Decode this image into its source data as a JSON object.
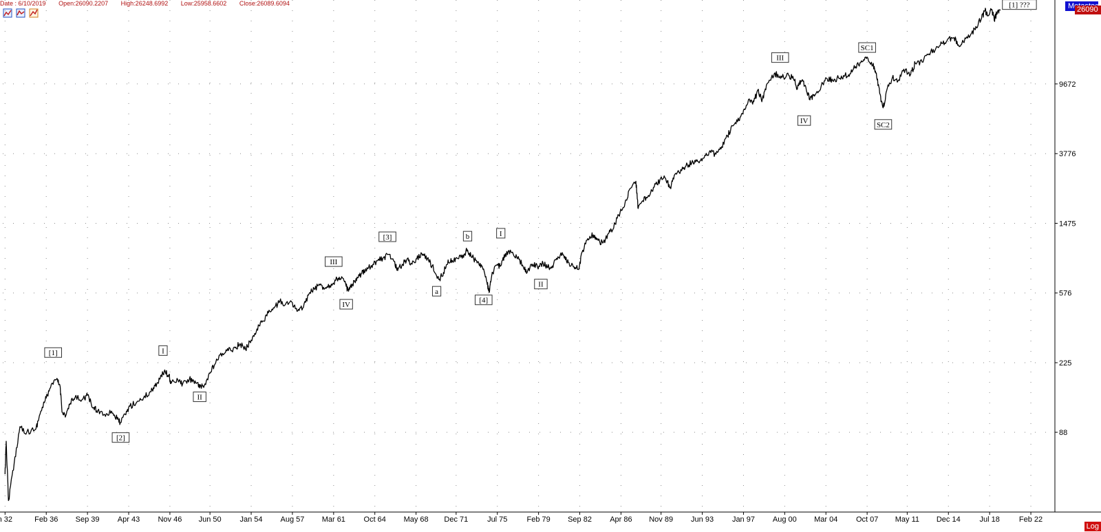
{
  "header": {
    "date": "Date : 6/10/2019",
    "open": "Open:26090.2207",
    "high": "High:26248.6992",
    "low": "Low:25958.6602",
    "close": "Close:26089.6094"
  },
  "toolbar": {
    "icons": [
      "chart-tool-icon",
      "chart-tool-icon",
      "chart-tool-icon"
    ]
  },
  "badges": {
    "name": "Metastock",
    "price": "26090",
    "scale_button": "Log"
  },
  "colors": {
    "line": "#000000",
    "grid": "#8a8a8a",
    "header_text": "#b01010",
    "name_badge": "#1010d0",
    "price_badge": "#c01010"
  },
  "chart_data": {
    "type": "line",
    "y_scale": "log",
    "grid": true,
    "ylim": [
      30,
      30000
    ],
    "xlim": [
      1932.3,
      2024.2
    ],
    "y_ticks": [
      88,
      225,
      576,
      1475,
      3776,
      9672
    ],
    "x_ticks": [
      {
        "x": 1932.5,
        "label": "n 32"
      },
      {
        "x": 1936.1,
        "label": "Feb 36"
      },
      {
        "x": 1939.7,
        "label": "Sep 39"
      },
      {
        "x": 1943.3,
        "label": "Apr 43"
      },
      {
        "x": 1946.9,
        "label": "Nov 46"
      },
      {
        "x": 1950.4,
        "label": "Jun 50"
      },
      {
        "x": 1954.0,
        "label": "Jan 54"
      },
      {
        "x": 1957.6,
        "label": "Aug 57"
      },
      {
        "x": 1961.2,
        "label": "Mar 61"
      },
      {
        "x": 1964.8,
        "label": "Oct 64"
      },
      {
        "x": 1968.4,
        "label": "May 68"
      },
      {
        "x": 1971.9,
        "label": "Dec 71"
      },
      {
        "x": 1975.5,
        "label": "Jul 75"
      },
      {
        "x": 1979.1,
        "label": "Feb 79"
      },
      {
        "x": 1982.7,
        "label": "Sep 82"
      },
      {
        "x": 1986.3,
        "label": "Apr 86"
      },
      {
        "x": 1989.8,
        "label": "Nov 89"
      },
      {
        "x": 1993.4,
        "label": "Jun 93"
      },
      {
        "x": 1997.0,
        "label": "Jan 97"
      },
      {
        "x": 2000.6,
        "label": "Aug 00"
      },
      {
        "x": 2004.2,
        "label": "Mar 04"
      },
      {
        "x": 2007.8,
        "label": "Oct 07"
      },
      {
        "x": 2011.3,
        "label": "May 11"
      },
      {
        "x": 2014.9,
        "label": "Dec 14"
      },
      {
        "x": 2018.5,
        "label": "Jul 18"
      },
      {
        "x": 2022.1,
        "label": "Feb 22"
      }
    ],
    "series": [
      {
        "points": [
          [
            1932.5,
            50
          ],
          [
            1932.6,
            78
          ],
          [
            1932.8,
            35
          ],
          [
            1933.3,
            58
          ],
          [
            1933.8,
            95
          ],
          [
            1934.4,
            88
          ],
          [
            1935.2,
            92
          ],
          [
            1935.5,
            110
          ],
          [
            1936.0,
            135
          ],
          [
            1936.4,
            158
          ],
          [
            1937.0,
            180
          ],
          [
            1937.3,
            165
          ],
          [
            1937.5,
            115
          ],
          [
            1937.8,
            110
          ],
          [
            1938.2,
            130
          ],
          [
            1938.6,
            140
          ],
          [
            1939.3,
            138
          ],
          [
            1939.7,
            145
          ],
          [
            1940.2,
            122
          ],
          [
            1940.6,
            118
          ],
          [
            1941.2,
            112
          ],
          [
            1941.8,
            117
          ],
          [
            1942.3,
            105
          ],
          [
            1942.6,
            100
          ],
          [
            1943.0,
            112
          ],
          [
            1943.4,
            125
          ],
          [
            1944.0,
            132
          ],
          [
            1944.6,
            140
          ],
          [
            1945.2,
            152
          ],
          [
            1945.6,
            165
          ],
          [
            1946.0,
            180
          ],
          [
            1946.4,
            200
          ],
          [
            1946.8,
            190
          ],
          [
            1947.0,
            170
          ],
          [
            1947.6,
            178
          ],
          [
            1948.0,
            168
          ],
          [
            1948.6,
            180
          ],
          [
            1949.1,
            176
          ],
          [
            1949.5,
            160
          ],
          [
            1949.9,
            165
          ],
          [
            1950.4,
            195
          ],
          [
            1950.9,
            225
          ],
          [
            1951.5,
            255
          ],
          [
            1952.0,
            265
          ],
          [
            1952.6,
            275
          ],
          [
            1953.0,
            290
          ],
          [
            1953.5,
            270
          ],
          [
            1954.0,
            305
          ],
          [
            1954.5,
            355
          ],
          [
            1955.0,
            395
          ],
          [
            1955.5,
            440
          ],
          [
            1956.0,
            470
          ],
          [
            1956.5,
            515
          ],
          [
            1957.0,
            495
          ],
          [
            1957.6,
            505
          ],
          [
            1958.0,
            450
          ],
          [
            1958.5,
            470
          ],
          [
            1959.0,
            560
          ],
          [
            1959.5,
            610
          ],
          [
            1960.0,
            640
          ],
          [
            1960.5,
            620
          ],
          [
            1961.0,
            650
          ],
          [
            1961.5,
            695
          ],
          [
            1961.9,
            718
          ],
          [
            1962.3,
            630
          ],
          [
            1962.5,
            590
          ],
          [
            1962.8,
            640
          ],
          [
            1963.2,
            680
          ],
          [
            1963.6,
            745
          ],
          [
            1964.0,
            800
          ],
          [
            1964.5,
            835
          ],
          [
            1965.0,
            890
          ],
          [
            1965.5,
            920
          ],
          [
            1966.0,
            970
          ],
          [
            1966.5,
            880
          ],
          [
            1966.8,
            780
          ],
          [
            1967.2,
            850
          ],
          [
            1967.6,
            905
          ],
          [
            1968.0,
            860
          ],
          [
            1968.4,
            910
          ],
          [
            1968.9,
            980
          ],
          [
            1969.4,
            920
          ],
          [
            1969.8,
            830
          ],
          [
            1970.4,
            690
          ],
          [
            1970.8,
            760
          ],
          [
            1971.2,
            900
          ],
          [
            1971.6,
            880
          ],
          [
            1972.0,
            920
          ],
          [
            1972.5,
            960
          ],
          [
            1972.9,
            1030
          ],
          [
            1973.3,
            930
          ],
          [
            1973.8,
            880
          ],
          [
            1974.2,
            820
          ],
          [
            1974.6,
            660
          ],
          [
            1974.8,
            580
          ],
          [
            1975.0,
            720
          ],
          [
            1975.4,
            840
          ],
          [
            1975.8,
            830
          ],
          [
            1976.2,
            980
          ],
          [
            1976.7,
            1000
          ],
          [
            1977.2,
            930
          ],
          [
            1977.7,
            840
          ],
          [
            1978.1,
            760
          ],
          [
            1978.6,
            850
          ],
          [
            1979.0,
            820
          ],
          [
            1979.5,
            860
          ],
          [
            1979.9,
            810
          ],
          [
            1980.3,
            830
          ],
          [
            1980.8,
            940
          ],
          [
            1981.3,
            960
          ],
          [
            1981.7,
            870
          ],
          [
            1982.2,
            820
          ],
          [
            1982.6,
            790
          ],
          [
            1982.9,
            1000
          ],
          [
            1983.4,
            1200
          ],
          [
            1983.9,
            1260
          ],
          [
            1984.3,
            1170
          ],
          [
            1984.7,
            1130
          ],
          [
            1985.2,
            1280
          ],
          [
            1985.6,
            1360
          ],
          [
            1986.1,
            1650
          ],
          [
            1986.6,
            1850
          ],
          [
            1987.0,
            2300
          ],
          [
            1987.6,
            2600
          ],
          [
            1987.8,
            1800
          ],
          [
            1988.2,
            2000
          ],
          [
            1988.7,
            2150
          ],
          [
            1989.2,
            2400
          ],
          [
            1989.7,
            2650
          ],
          [
            1990.2,
            2700
          ],
          [
            1990.6,
            2400
          ],
          [
            1991.0,
            2850
          ],
          [
            1991.6,
            3000
          ],
          [
            1992.1,
            3250
          ],
          [
            1992.6,
            3350
          ],
          [
            1993.0,
            3400
          ],
          [
            1993.5,
            3550
          ],
          [
            1994.0,
            3850
          ],
          [
            1994.6,
            3750
          ],
          [
            1995.1,
            4150
          ],
          [
            1995.6,
            4800
          ],
          [
            1996.1,
            5500
          ],
          [
            1996.6,
            5900
          ],
          [
            1997.0,
            6800
          ],
          [
            1997.5,
            7900
          ],
          [
            1997.9,
            7600
          ],
          [
            1998.3,
            9000
          ],
          [
            1998.6,
            7600
          ],
          [
            1999.0,
            9500
          ],
          [
            1999.5,
            10900
          ],
          [
            2000.0,
            11000
          ],
          [
            2000.5,
            10600
          ],
          [
            2001.0,
            10800
          ],
          [
            2001.5,
            10300
          ],
          [
            2001.7,
            9000
          ],
          [
            2002.0,
            10100
          ],
          [
            2002.4,
            9500
          ],
          [
            2002.8,
            7800
          ],
          [
            2003.2,
            8200
          ],
          [
            2003.8,
            9500
          ],
          [
            2004.3,
            10400
          ],
          [
            2004.8,
            10100
          ],
          [
            2005.3,
            10500
          ],
          [
            2005.8,
            10700
          ],
          [
            2006.3,
            11100
          ],
          [
            2006.8,
            12200
          ],
          [
            2007.3,
            13200
          ],
          [
            2007.8,
            13900
          ],
          [
            2008.3,
            12500
          ],
          [
            2008.6,
            11200
          ],
          [
            2008.9,
            8500
          ],
          [
            2009.2,
            7000
          ],
          [
            2009.5,
            8800
          ],
          [
            2010.0,
            10500
          ],
          [
            2010.5,
            10100
          ],
          [
            2011.0,
            11800
          ],
          [
            2011.6,
            11000
          ],
          [
            2012.0,
            12800
          ],
          [
            2012.6,
            13000
          ],
          [
            2013.2,
            14500
          ],
          [
            2013.8,
            15600
          ],
          [
            2014.4,
            16700
          ],
          [
            2014.9,
            17800
          ],
          [
            2015.4,
            18000
          ],
          [
            2015.8,
            16200
          ],
          [
            2016.2,
            17000
          ],
          [
            2016.8,
            18500
          ],
          [
            2017.3,
            21000
          ],
          [
            2017.8,
            23500
          ],
          [
            2018.1,
            26000
          ],
          [
            2018.3,
            24200
          ],
          [
            2018.7,
            26400
          ],
          [
            2018.9,
            22800
          ],
          [
            2019.2,
            25800
          ],
          [
            2019.45,
            26100
          ]
        ]
      }
    ],
    "annotations": [
      {
        "text": "[1]",
        "x": 1936.7,
        "y": 258
      },
      {
        "text": "[2]",
        "x": 1942.6,
        "y": 82
      },
      {
        "text": "I",
        "x": 1946.3,
        "y": 265
      },
      {
        "text": "II",
        "x": 1949.5,
        "y": 142
      },
      {
        "text": "III",
        "x": 1961.2,
        "y": 880
      },
      {
        "text": "IV",
        "x": 1962.3,
        "y": 495
      },
      {
        "text": "[3]",
        "x": 1965.9,
        "y": 1230
      },
      {
        "text": "a",
        "x": 1970.2,
        "y": 590
      },
      {
        "text": "b",
        "x": 1972.9,
        "y": 1240
      },
      {
        "text": "[4]",
        "x": 1974.3,
        "y": 525
      },
      {
        "text": "I",
        "x": 1975.8,
        "y": 1290
      },
      {
        "text": "II",
        "x": 1979.3,
        "y": 650
      },
      {
        "text": "III",
        "x": 2000.2,
        "y": 13800
      },
      {
        "text": "IV",
        "x": 2002.3,
        "y": 5900
      },
      {
        "text": "SC1",
        "x": 2007.8,
        "y": 15800
      },
      {
        "text": "SC2",
        "x": 2009.2,
        "y": 5600
      },
      {
        "text": "[1] ???",
        "x": 2021.1,
        "y": 28200
      }
    ]
  }
}
